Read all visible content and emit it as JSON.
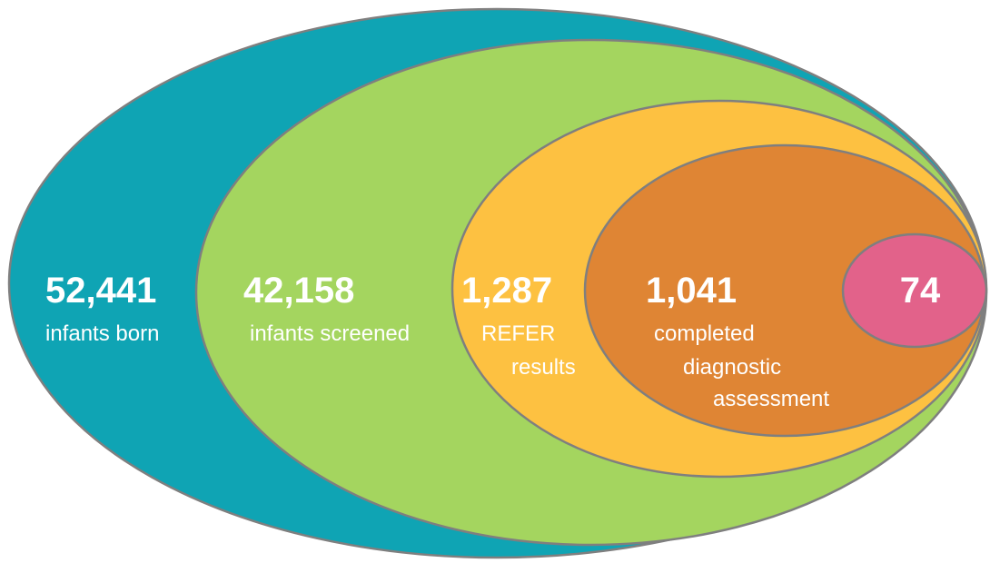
{
  "nodes": [
    {
      "value": "52,441",
      "label": [
        "infants born"
      ]
    },
    {
      "value": "42,158",
      "label": [
        "infants screened"
      ]
    },
    {
      "value": "1,287",
      "label": [
        "REFER",
        "results"
      ]
    },
    {
      "value": "1,041",
      "label": [
        "completed",
        "diagnostic",
        "assessment"
      ]
    },
    {
      "value": "74",
      "label": []
    }
  ]
}
